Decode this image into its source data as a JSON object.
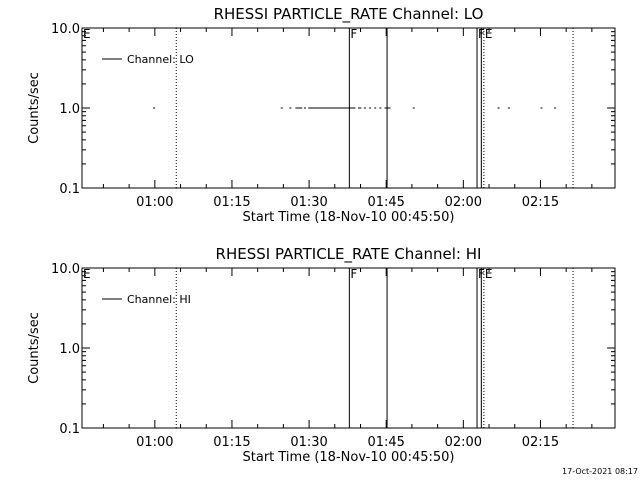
{
  "footer": {
    "timestamp": "17-Oct-2021 08:17"
  },
  "chart_data": [
    {
      "type": "line",
      "title": "RHESSI PARTICLE_RATE Channel: LO",
      "xlabel": "Start Time (18-Nov-10 00:45:50)",
      "ylabel": "Counts/sec",
      "yscale": "log",
      "xlim": [
        "00:45:50",
        "02:29:30"
      ],
      "ylim": [
        0.1,
        10.0
      ],
      "xticks": [
        "01:00",
        "01:15",
        "01:30",
        "01:45",
        "02:00",
        "02:15"
      ],
      "yticks": [
        "0.1",
        "1.0",
        "10.0"
      ],
      "legend": {
        "placement": "top-left",
        "entry": "Channel: LO"
      },
      "series": [
        {
          "name": "Channel: LO",
          "segments": [
            [
              "00:59:40",
              "00:59:55"
            ],
            [
              "01:24:30",
              "01:24:45"
            ],
            [
              "01:26:10",
              "01:26:25"
            ],
            [
              "01:27:20",
              "01:28:40"
            ],
            [
              "01:29:00",
              "01:29:10"
            ],
            [
              "01:29:50",
              "01:39:00"
            ],
            [
              "01:39:30",
              "01:40:10"
            ],
            [
              "01:40:40",
              "01:41:00"
            ],
            [
              "01:41:40",
              "01:42:00"
            ],
            [
              "01:42:40",
              "01:43:00"
            ],
            [
              "01:43:40",
              "01:44:00"
            ],
            [
              "01:44:40",
              "01:45:50"
            ],
            [
              "01:50:10",
              "01:50:30"
            ],
            [
              "02:06:40",
              "02:06:55"
            ],
            [
              "02:08:40",
              "02:09:00"
            ],
            [
              "02:15:00",
              "02:15:15"
            ],
            [
              "02:17:40",
              "02:17:55"
            ]
          ],
          "value": 1.0
        }
      ],
      "markers": [
        {
          "time": "00:45:50",
          "style": "none",
          "label": "E"
        },
        {
          "time": "01:04:10",
          "style": "dotted",
          "label": ""
        },
        {
          "time": "01:37:50",
          "style": "solid",
          "label": "F"
        },
        {
          "time": "01:45:10",
          "style": "solid",
          "label": ""
        },
        {
          "time": "02:02:40",
          "style": "solid",
          "label": "F"
        },
        {
          "time": "02:03:30",
          "style": "solid",
          "label": ""
        },
        {
          "time": "02:04:00",
          "style": "dotted",
          "label": "E"
        },
        {
          "time": "02:21:20",
          "style": "dotted",
          "label": ""
        }
      ]
    },
    {
      "type": "line",
      "title": "RHESSI PARTICLE_RATE Channel: HI",
      "xlabel": "Start Time (18-Nov-10 00:45:50)",
      "ylabel": "Counts/sec",
      "yscale": "log",
      "xlim": [
        "00:45:50",
        "02:29:30"
      ],
      "ylim": [
        0.1,
        10.0
      ],
      "xticks": [
        "01:00",
        "01:15",
        "01:30",
        "01:45",
        "02:00",
        "02:15"
      ],
      "yticks": [
        "0.1",
        "1.0",
        "10.0"
      ],
      "legend": {
        "placement": "top-left",
        "entry": "Channel: HI"
      },
      "series": [
        {
          "name": "Channel: HI",
          "segments": [],
          "value": 1.0
        }
      ],
      "markers": [
        {
          "time": "00:45:50",
          "style": "none",
          "label": "E"
        },
        {
          "time": "01:04:10",
          "style": "dotted",
          "label": ""
        },
        {
          "time": "01:37:50",
          "style": "solid",
          "label": "F"
        },
        {
          "time": "01:45:10",
          "style": "solid",
          "label": ""
        },
        {
          "time": "02:02:40",
          "style": "solid",
          "label": "F"
        },
        {
          "time": "02:03:30",
          "style": "solid",
          "label": ""
        },
        {
          "time": "02:04:00",
          "style": "dotted",
          "label": "E"
        },
        {
          "time": "02:21:20",
          "style": "dotted",
          "label": ""
        }
      ]
    }
  ]
}
